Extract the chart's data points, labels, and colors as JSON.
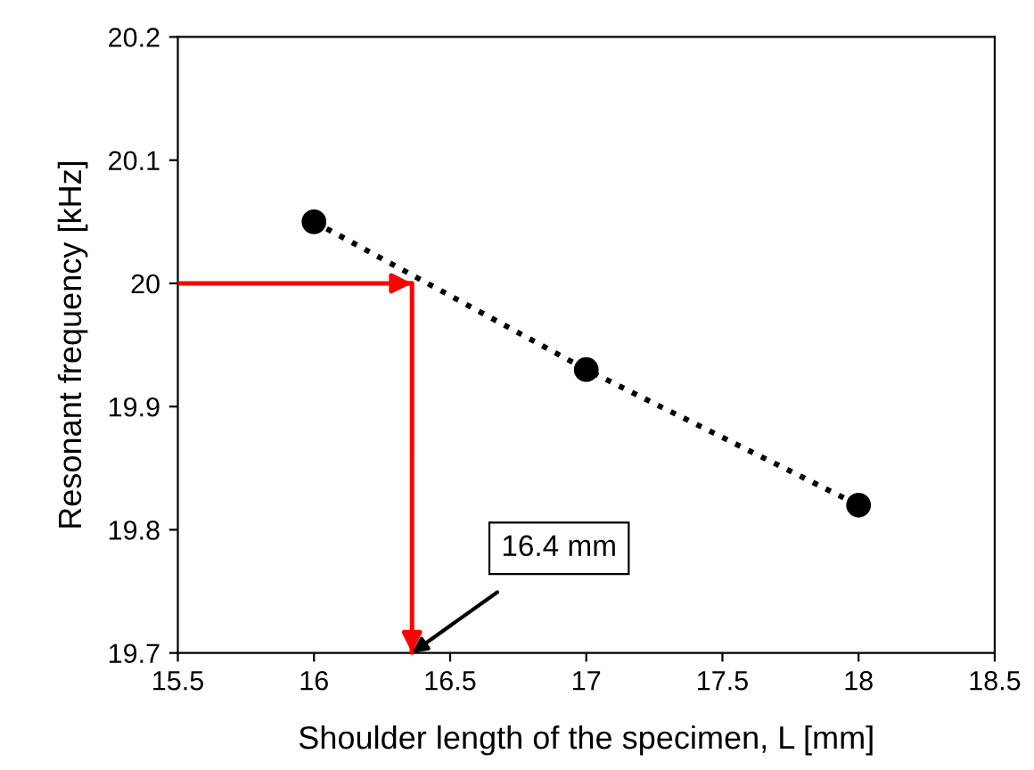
{
  "chart_data": {
    "type": "line",
    "xlabel": "Shoulder length of the specimen, L [mm]",
    "ylabel": "Resonant frequency [kHz]",
    "xlim": [
      15.5,
      18.5
    ],
    "ylim": [
      19.7,
      20.2
    ],
    "xticks": [
      15.5,
      16,
      16.5,
      17,
      17.5,
      18,
      18.5
    ],
    "yticks": [
      19.7,
      19.8,
      19.9,
      20,
      20.1,
      20.2
    ],
    "series": [
      {
        "color": "#000000",
        "x": [
          16,
          17,
          18
        ],
        "values": [
          20.05,
          19.93,
          19.82
        ],
        "marker": "circle",
        "line_style": "dotted"
      },
      {
        "color": "#ff0000",
        "x": [
          15.5,
          16.36,
          16.36
        ],
        "values": [
          20.0,
          20.0,
          19.7
        ],
        "marker": "none",
        "line_style": "solid"
      }
    ],
    "annotations": [
      {
        "text": "16.4 mm",
        "x": 16.36,
        "y": 19.7
      }
    ],
    "grid": false,
    "legend": false
  }
}
